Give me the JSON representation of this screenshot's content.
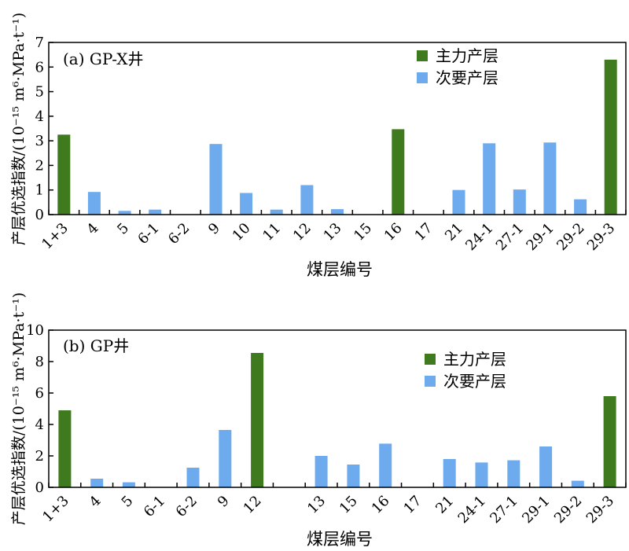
{
  "colors": {
    "main": "#3f7b1e",
    "secondary": "#6eaaee",
    "axis": "#000000"
  },
  "chart_data": [
    {
      "type": "bar",
      "panel_label": "(a) GP-X井",
      "xlabel": "煤层编号",
      "ylabel": "产层优选指数/(10⁻¹⁵ m⁶·MPa·t⁻¹)",
      "ylim": [
        0,
        7
      ],
      "yticks": [
        0,
        1,
        2,
        3,
        4,
        5,
        6,
        7
      ],
      "categories": [
        "1+3",
        "4",
        "5",
        "6-1",
        "6-2",
        "9",
        "10",
        "11",
        "12",
        "13",
        "15",
        "16",
        "17",
        "21",
        "24-1",
        "27-1",
        "29-1",
        "29-2",
        "29-3"
      ],
      "values": [
        3.25,
        0.92,
        0.15,
        0.2,
        null,
        2.87,
        0.88,
        0.2,
        1.2,
        0.22,
        null,
        3.47,
        null,
        1.0,
        2.9,
        1.02,
        2.93,
        0.62,
        6.3
      ],
      "layer_type": [
        "main",
        "secondary",
        "secondary",
        "secondary",
        null,
        "secondary",
        "secondary",
        "secondary",
        "secondary",
        "secondary",
        null,
        "main",
        null,
        "secondary",
        "secondary",
        "secondary",
        "secondary",
        "secondary",
        "main"
      ],
      "legend": [
        {
          "key": "main",
          "label": "主力产层"
        },
        {
          "key": "secondary",
          "label": "次要产层"
        }
      ],
      "legend_position": "top-right"
    },
    {
      "type": "bar",
      "panel_label": "(b) GP井",
      "xlabel": "煤层编号",
      "ylabel": "产层优选指数/(10⁻¹⁵ m⁶·MPa·t⁻¹)",
      "ylim": [
        0,
        10
      ],
      "yticks": [
        0,
        2,
        4,
        6,
        8,
        10
      ],
      "categories": [
        "1+3",
        "4",
        "5",
        "6-1",
        "6-2",
        "9",
        "12",
        "",
        "13",
        "15",
        "16",
        "17",
        "21",
        "24-1",
        "27-1",
        "29-1",
        "29-2",
        "29-3"
      ],
      "values": [
        4.9,
        0.55,
        0.32,
        null,
        1.25,
        3.65,
        8.55,
        null,
        2.0,
        1.45,
        2.78,
        null,
        1.8,
        1.58,
        1.72,
        2.6,
        0.42,
        5.8
      ],
      "layer_type": [
        "main",
        "secondary",
        "secondary",
        null,
        "secondary",
        "secondary",
        "main",
        null,
        "secondary",
        "secondary",
        "secondary",
        null,
        "secondary",
        "secondary",
        "secondary",
        "secondary",
        "secondary",
        "main"
      ],
      "legend": [
        {
          "key": "main",
          "label": "主力产层"
        },
        {
          "key": "secondary",
          "label": "次要产层"
        }
      ],
      "legend_position": "top-right"
    }
  ]
}
